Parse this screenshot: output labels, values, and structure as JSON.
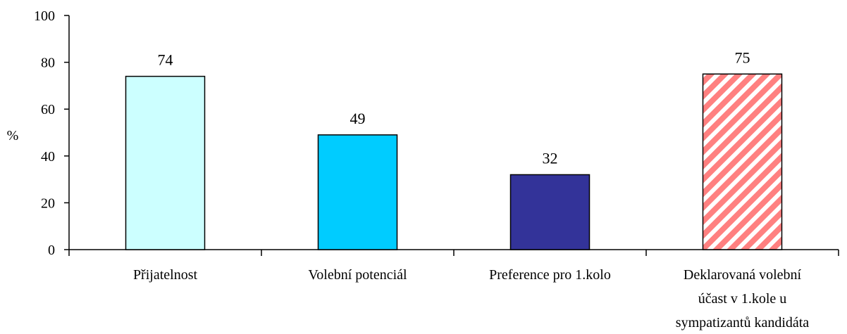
{
  "chart_data": {
    "type": "bar",
    "title": "",
    "xlabel": "",
    "ylabel": "%",
    "ylim": [
      0,
      100
    ],
    "yticks": [
      0,
      20,
      40,
      60,
      80,
      100
    ],
    "grid": false,
    "categories": [
      [
        "Přijatelnost"
      ],
      [
        "Volební potenciál"
      ],
      [
        "Preference pro 1.kolo"
      ],
      [
        "Deklarovaná volební",
        "účast v 1.kole u",
        "sympatizantů kandidáta"
      ]
    ],
    "values": [
      74,
      49,
      32,
      75
    ],
    "data_labels": [
      "74",
      "49",
      "32",
      "75"
    ],
    "bar_styles": [
      {
        "fill": "#ccffff",
        "pattern": "solid"
      },
      {
        "fill": "#00ccff",
        "pattern": "solid"
      },
      {
        "fill": "#333399",
        "pattern": "solid"
      },
      {
        "fill": "#ff8080",
        "pattern": "diagonal-stripes"
      }
    ]
  }
}
